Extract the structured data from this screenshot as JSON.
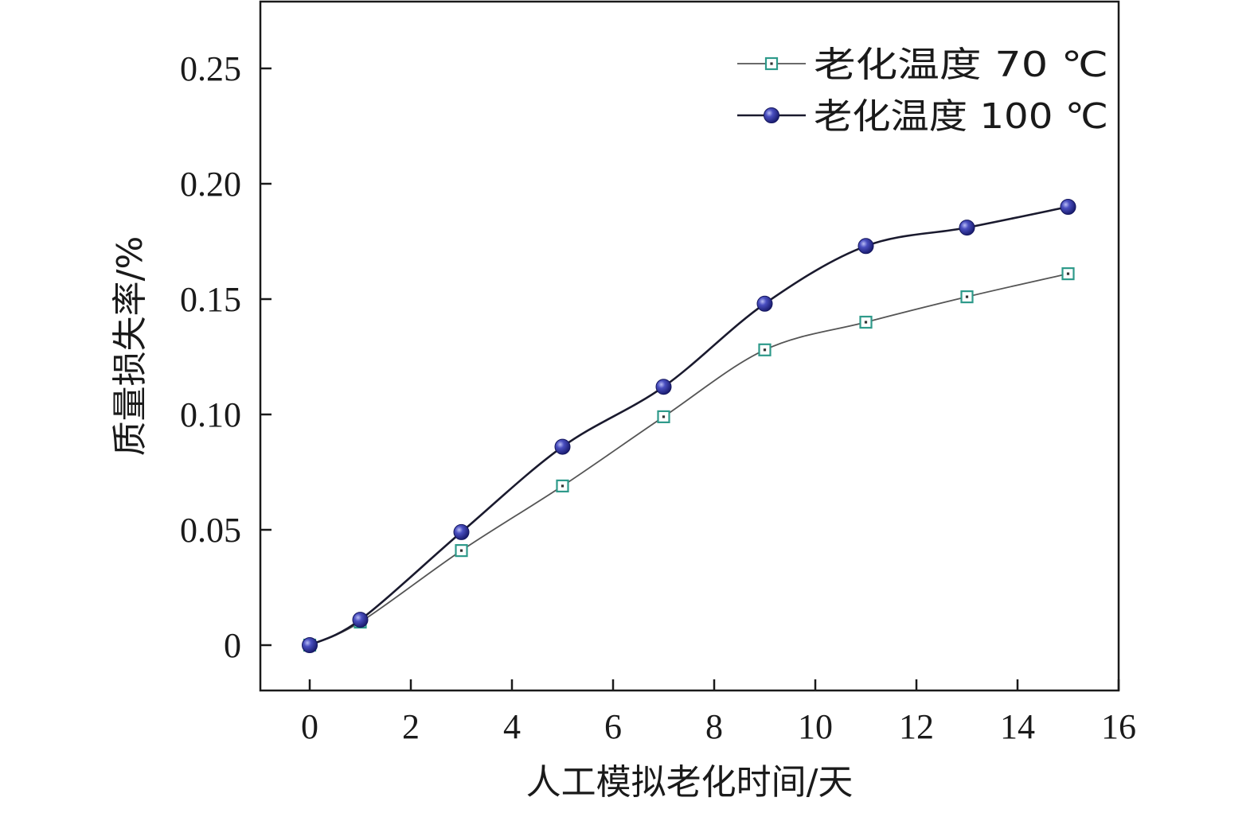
{
  "chart_data": {
    "type": "line",
    "xlabel": "人工模拟老化时间/天",
    "ylabel": "质量损失率/%",
    "xlim": [
      -1,
      16
    ],
    "ylim": [
      -0.02,
      0.28
    ],
    "xticks": [
      0,
      2,
      4,
      6,
      8,
      10,
      12,
      14,
      16
    ],
    "yticks": [
      0,
      0.05,
      0.1,
      0.15,
      0.2,
      0.25
    ],
    "ytick_labels": [
      "0",
      "0.05",
      "0.10",
      "0.15",
      "0.20",
      "0.25"
    ],
    "x": [
      0,
      1,
      3,
      5,
      7,
      9,
      11,
      13,
      15
    ],
    "series": [
      {
        "name": "老化温度 70 ℃",
        "values": [
          0,
          0.01,
          0.041,
          0.069,
          0.099,
          0.128,
          0.14,
          0.151,
          0.161
        ],
        "color": "#2e9a8a",
        "marker": "square"
      },
      {
        "name": "老化温度 100 ℃",
        "values": [
          0,
          0.011,
          0.049,
          0.086,
          0.112,
          0.148,
          0.173,
          0.181,
          0.19
        ],
        "color": "#2b2e8f",
        "marker": "circle"
      }
    ],
    "legend_position": "top-right",
    "grid": false
  }
}
